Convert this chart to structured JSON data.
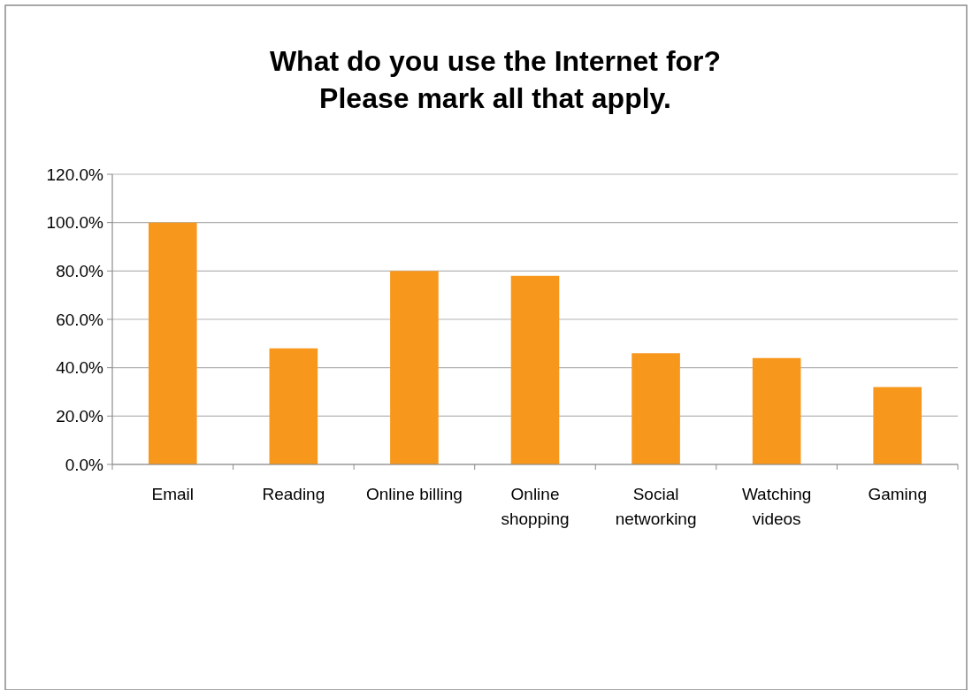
{
  "chart_data": {
    "type": "bar",
    "title": "What do you use the Internet for?\nPlease mark all that apply.",
    "categories": [
      "Email",
      "Reading",
      "Online billing",
      "Online shopping",
      "Social networking",
      "Watching videos",
      "Gaming"
    ],
    "values": [
      100,
      48,
      80,
      78,
      46,
      44,
      32
    ],
    "color": "#f7981d",
    "ylim": [
      0,
      120
    ],
    "yticks": [
      {
        "value": 0,
        "label": "0.0%"
      },
      {
        "value": 20,
        "label": "20.0%"
      },
      {
        "value": 40,
        "label": "40.0%"
      },
      {
        "value": 60,
        "label": "60.0%"
      },
      {
        "value": 80,
        "label": "80.0%"
      },
      {
        "value": 100,
        "label": "100.0%"
      },
      {
        "value": 120,
        "label": "120.0%"
      }
    ],
    "grid": "y"
  }
}
